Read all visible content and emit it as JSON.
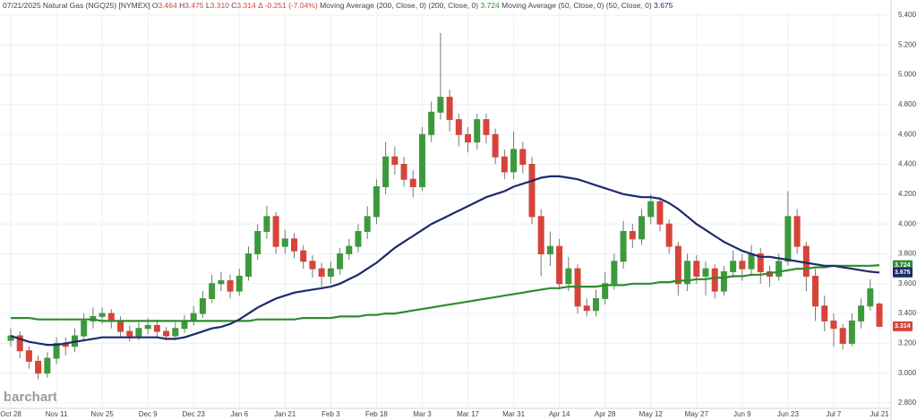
{
  "chart_data": {
    "type": "candlestick",
    "header": {
      "date": "07/21/2025",
      "instrument": "Natural Gas (NGQ25) [NYMEX]",
      "ohlc": [
        {
          "key": "O",
          "value": "3.464"
        },
        {
          "key": "H",
          "value": "3.475"
        },
        {
          "key": "L",
          "value": "3.310"
        },
        {
          "key": "C",
          "value": "3.314"
        }
      ],
      "change": "Δ -0.251 (-7.04%)",
      "ma200_label": "Moving Average (200, Close, 0) (200, Close, 0)",
      "ma200_value": "3.724",
      "ma50_label": "Moving Average (50, Close, 0) (50, Close, 0)",
      "ma50_value": "3.675"
    },
    "watermark": "barchart",
    "categories": [
      "Oct 28",
      null,
      null,
      null,
      null,
      "Nov 11",
      null,
      null,
      null,
      null,
      "Nov 25",
      null,
      null,
      null,
      null,
      "Dec 9",
      null,
      null,
      null,
      null,
      "Dec 23",
      null,
      null,
      null,
      null,
      "Jan 6",
      null,
      null,
      null,
      null,
      "Jan 21",
      null,
      null,
      null,
      null,
      "Feb 3",
      null,
      null,
      null,
      null,
      "Feb 18",
      null,
      null,
      null,
      null,
      "Mar 3",
      null,
      null,
      null,
      null,
      "Mar 17",
      null,
      null,
      null,
      null,
      "Mar 31",
      null,
      null,
      null,
      null,
      "Apr 14",
      null,
      null,
      null,
      null,
      "Apr 28",
      null,
      null,
      null,
      null,
      "May 12",
      null,
      null,
      null,
      null,
      "May 27",
      null,
      null,
      null,
      null,
      "Jun 9",
      null,
      null,
      null,
      null,
      "Jun 23",
      null,
      null,
      null,
      null,
      "Jul 7",
      null,
      null,
      null,
      null,
      "Jul 21"
    ],
    "open": [
      3.22,
      3.25,
      3.15,
      3.08,
      3.0,
      3.1,
      3.2,
      3.18,
      3.25,
      3.35,
      3.38,
      3.4,
      3.35,
      3.28,
      3.25,
      3.3,
      3.32,
      3.28,
      3.25,
      3.3,
      3.35,
      3.4,
      3.5,
      3.6,
      3.62,
      3.55,
      3.65,
      3.8,
      3.95,
      4.05,
      3.85,
      3.9,
      3.82,
      3.75,
      3.7,
      3.65,
      3.7,
      3.8,
      3.85,
      3.95,
      4.05,
      4.25,
      4.45,
      4.4,
      4.3,
      4.25,
      4.6,
      4.75,
      4.85,
      4.7,
      4.6,
      4.55,
      4.7,
      4.6,
      4.45,
      4.35,
      4.5,
      4.4,
      4.05,
      3.8,
      3.85,
      3.6,
      3.7,
      3.45,
      3.42,
      3.5,
      3.6,
      3.75,
      3.95,
      3.9,
      4.05,
      4.15,
      4.0,
      3.85,
      3.6,
      3.75,
      3.65,
      3.7,
      3.55,
      3.68,
      3.75,
      3.7,
      3.8,
      3.68,
      3.65,
      3.75,
      4.05,
      3.85,
      3.65,
      3.45,
      3.35,
      3.3,
      3.2,
      3.35,
      3.45,
      3.464
    ],
    "high": [
      3.3,
      3.28,
      3.18,
      3.12,
      3.14,
      3.24,
      3.24,
      3.3,
      3.4,
      3.44,
      3.44,
      3.43,
      3.38,
      3.32,
      3.34,
      3.37,
      3.36,
      3.31,
      3.34,
      3.39,
      3.45,
      3.55,
      3.66,
      3.68,
      3.66,
      3.7,
      3.85,
      4.0,
      4.12,
      4.08,
      3.96,
      3.94,
      3.86,
      3.79,
      3.74,
      3.75,
      3.84,
      3.9,
      4.0,
      4.12,
      4.3,
      4.55,
      4.52,
      4.45,
      4.36,
      4.65,
      4.82,
      5.28,
      4.9,
      4.74,
      4.65,
      4.74,
      4.74,
      4.64,
      4.5,
      4.62,
      4.55,
      4.45,
      4.1,
      3.95,
      3.9,
      3.78,
      3.73,
      3.5,
      3.56,
      3.68,
      3.8,
      4.02,
      4.0,
      4.1,
      4.2,
      4.18,
      4.03,
      3.88,
      3.8,
      3.79,
      3.75,
      3.73,
      3.72,
      3.82,
      3.8,
      3.86,
      3.84,
      3.72,
      3.8,
      4.22,
      4.1,
      3.88,
      3.7,
      3.52,
      3.4,
      3.33,
      3.4,
      3.5,
      3.63,
      3.475
    ],
    "low": [
      3.18,
      3.1,
      3.03,
      2.96,
      2.97,
      3.06,
      3.12,
      3.14,
      3.22,
      3.3,
      3.33,
      3.3,
      3.24,
      3.21,
      3.22,
      3.26,
      3.24,
      3.22,
      3.22,
      3.27,
      3.32,
      3.37,
      3.47,
      3.55,
      3.5,
      3.52,
      3.62,
      3.76,
      3.9,
      3.8,
      3.8,
      3.77,
      3.7,
      3.64,
      3.58,
      3.6,
      3.66,
      3.76,
      3.81,
      3.9,
      4.0,
      4.2,
      4.33,
      4.25,
      4.18,
      4.22,
      4.55,
      4.7,
      4.62,
      4.52,
      4.48,
      4.5,
      4.54,
      4.4,
      4.3,
      4.3,
      4.34,
      4.0,
      3.65,
      3.72,
      3.56,
      3.55,
      3.4,
      3.38,
      3.38,
      3.46,
      3.56,
      3.7,
      3.84,
      3.86,
      4.0,
      3.95,
      3.8,
      3.52,
      3.55,
      3.6,
      3.52,
      3.5,
      3.52,
      3.64,
      3.62,
      3.65,
      3.6,
      3.58,
      3.62,
      3.72,
      3.8,
      3.55,
      3.35,
      3.28,
      3.18,
      3.16,
      3.18,
      3.3,
      3.42,
      3.31
    ],
    "close": [
      3.25,
      3.15,
      3.08,
      3.0,
      3.1,
      3.2,
      3.18,
      3.25,
      3.35,
      3.38,
      3.4,
      3.35,
      3.28,
      3.25,
      3.3,
      3.32,
      3.28,
      3.25,
      3.3,
      3.35,
      3.4,
      3.5,
      3.6,
      3.62,
      3.55,
      3.65,
      3.8,
      3.95,
      4.05,
      3.85,
      3.9,
      3.82,
      3.75,
      3.7,
      3.65,
      3.7,
      3.8,
      3.85,
      3.95,
      4.05,
      4.25,
      4.45,
      4.4,
      4.3,
      4.25,
      4.6,
      4.75,
      4.85,
      4.7,
      4.6,
      4.55,
      4.7,
      4.6,
      4.45,
      4.35,
      4.5,
      4.4,
      4.05,
      3.8,
      3.85,
      3.6,
      3.7,
      3.45,
      3.42,
      3.5,
      3.6,
      3.75,
      3.95,
      3.9,
      4.05,
      4.15,
      4.0,
      3.85,
      3.6,
      3.75,
      3.65,
      3.7,
      3.55,
      3.68,
      3.75,
      3.7,
      3.8,
      3.68,
      3.65,
      3.75,
      4.05,
      3.85,
      3.65,
      3.45,
      3.35,
      3.3,
      3.2,
      3.35,
      3.45,
      3.565,
      3.314
    ],
    "up_color": "#3c9a3c",
    "down_color": "#d8433a",
    "series": [
      {
        "name": "Moving Average (200)",
        "color": "#2e8b2e",
        "values": [
          3.37,
          3.37,
          3.37,
          3.36,
          3.36,
          3.36,
          3.36,
          3.36,
          3.36,
          3.36,
          3.35,
          3.35,
          3.35,
          3.35,
          3.35,
          3.35,
          3.35,
          3.35,
          3.35,
          3.35,
          3.35,
          3.35,
          3.35,
          3.35,
          3.35,
          3.35,
          3.35,
          3.36,
          3.36,
          3.36,
          3.36,
          3.36,
          3.37,
          3.37,
          3.37,
          3.37,
          3.38,
          3.38,
          3.38,
          3.39,
          3.39,
          3.4,
          3.4,
          3.41,
          3.42,
          3.43,
          3.44,
          3.45,
          3.46,
          3.47,
          3.48,
          3.49,
          3.5,
          3.51,
          3.52,
          3.53,
          3.54,
          3.55,
          3.56,
          3.57,
          3.57,
          3.58,
          3.58,
          3.58,
          3.58,
          3.59,
          3.59,
          3.59,
          3.6,
          3.6,
          3.6,
          3.61,
          3.61,
          3.62,
          3.62,
          3.63,
          3.63,
          3.64,
          3.64,
          3.65,
          3.65,
          3.66,
          3.66,
          3.67,
          3.68,
          3.69,
          3.7,
          3.7,
          3.71,
          3.71,
          3.72,
          3.72,
          3.72,
          3.72,
          3.72,
          3.724
        ]
      },
      {
        "name": "Moving Average (50)",
        "color": "#1c2a6b",
        "values": [
          3.25,
          3.23,
          3.21,
          3.2,
          3.19,
          3.19,
          3.2,
          3.21,
          3.22,
          3.23,
          3.24,
          3.24,
          3.24,
          3.24,
          3.24,
          3.24,
          3.24,
          3.23,
          3.23,
          3.24,
          3.26,
          3.28,
          3.3,
          3.31,
          3.33,
          3.36,
          3.4,
          3.44,
          3.47,
          3.5,
          3.52,
          3.54,
          3.55,
          3.56,
          3.57,
          3.58,
          3.6,
          3.63,
          3.66,
          3.7,
          3.74,
          3.79,
          3.84,
          3.88,
          3.92,
          3.96,
          4.0,
          4.03,
          4.06,
          4.09,
          4.12,
          4.15,
          4.18,
          4.2,
          4.22,
          4.25,
          4.27,
          4.29,
          4.31,
          4.32,
          4.32,
          4.31,
          4.3,
          4.28,
          4.26,
          4.24,
          4.22,
          4.2,
          4.19,
          4.18,
          4.18,
          4.17,
          4.14,
          4.1,
          4.05,
          4.0,
          3.96,
          3.92,
          3.88,
          3.85,
          3.82,
          3.8,
          3.78,
          3.78,
          3.77,
          3.76,
          3.75,
          3.74,
          3.73,
          3.72,
          3.72,
          3.71,
          3.7,
          3.69,
          3.68,
          3.675
        ]
      }
    ],
    "ylim": [
      2.8,
      5.4
    ],
    "yticks": [
      {
        "value": 2.8,
        "label": "2.800"
      },
      {
        "value": 3.0,
        "label": "3.000"
      },
      {
        "value": 3.2,
        "label": "3.200"
      },
      {
        "value": 3.4,
        "label": "3.400"
      },
      {
        "value": 3.6,
        "label": "3.600"
      },
      {
        "value": 3.8,
        "label": "3.800"
      },
      {
        "value": 4.0,
        "label": "4.000"
      },
      {
        "value": 4.2,
        "label": "4.200"
      },
      {
        "value": 4.4,
        "label": "4.400"
      },
      {
        "value": 4.6,
        "label": "4.600"
      },
      {
        "value": 4.8,
        "label": "4.800"
      },
      {
        "value": 5.0,
        "label": "5.000"
      },
      {
        "value": 5.2,
        "label": "5.200"
      },
      {
        "value": 5.4,
        "label": "5.400"
      }
    ],
    "grid": true
  }
}
